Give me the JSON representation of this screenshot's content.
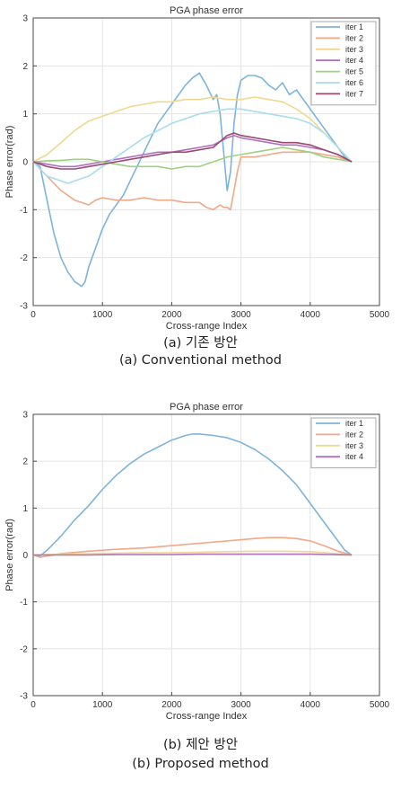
{
  "captions": {
    "a_korean": "(a) 기존 방안",
    "a_english": "(a) Conventional method",
    "b_korean": "(b) 제안 방안",
    "b_english": "(b) Proposed method"
  },
  "chart_data": [
    {
      "type": "line",
      "title": "PGA phase error",
      "xlabel": "Cross-range Index",
      "ylabel": "Phase error(rad)",
      "xlim": [
        0,
        5000
      ],
      "ylim": [
        -3,
        3
      ],
      "xticks": [
        0,
        1000,
        2000,
        3000,
        4000,
        5000
      ],
      "yticks": [
        -3,
        -2,
        -1,
        0,
        1,
        2,
        3
      ],
      "grid": true,
      "legend": "top-right",
      "series": [
        {
          "name": "iter 1",
          "color": "#7db4dc",
          "x": [
            0,
            100,
            200,
            300,
            400,
            500,
            600,
            700,
            750,
            800,
            900,
            1000,
            1100,
            1200,
            1300,
            1400,
            1500,
            1600,
            1700,
            1800,
            1900,
            2000,
            2100,
            2200,
            2300,
            2400,
            2500,
            2600,
            2650,
            2700,
            2750,
            2800,
            2850,
            2900,
            2950,
            3000,
            3100,
            3200,
            3300,
            3400,
            3500,
            3600,
            3700,
            3800,
            3900,
            4000,
            4100,
            4200,
            4300,
            4400,
            4500,
            4600
          ],
          "y": [
            0,
            -0.1,
            -0.8,
            -1.5,
            -2.0,
            -2.3,
            -2.5,
            -2.6,
            -2.5,
            -2.2,
            -1.8,
            -1.4,
            -1.1,
            -0.9,
            -0.7,
            -0.4,
            -0.1,
            0.2,
            0.5,
            0.8,
            1.0,
            1.2,
            1.4,
            1.6,
            1.75,
            1.85,
            1.6,
            1.3,
            1.4,
            1.0,
            0.2,
            -0.6,
            -0.2,
            0.8,
            1.4,
            1.7,
            1.8,
            1.8,
            1.75,
            1.6,
            1.5,
            1.65,
            1.4,
            1.5,
            1.3,
            1.1,
            0.9,
            0.7,
            0.5,
            0.3,
            0.1,
            0
          ]
        },
        {
          "name": "iter 2",
          "color": "#f0a888",
          "x": [
            0,
            200,
            400,
            600,
            800,
            900,
            1000,
            1200,
            1400,
            1600,
            1800,
            2000,
            2200,
            2400,
            2500,
            2600,
            2700,
            2750,
            2800,
            2850,
            2900,
            2950,
            3000,
            3200,
            3400,
            3600,
            3800,
            4000,
            4200,
            4400,
            4600
          ],
          "y": [
            0,
            -0.3,
            -0.6,
            -0.8,
            -0.9,
            -0.8,
            -0.75,
            -0.8,
            -0.8,
            -0.75,
            -0.8,
            -0.8,
            -0.85,
            -0.85,
            -0.95,
            -1.0,
            -0.9,
            -0.95,
            -0.95,
            -1.0,
            -0.6,
            -0.2,
            0.1,
            0.1,
            0.15,
            0.2,
            0.2,
            0.2,
            0.15,
            0.1,
            0
          ]
        },
        {
          "name": "iter 3",
          "color": "#f0d890",
          "x": [
            0,
            200,
            400,
            600,
            800,
            1000,
            1200,
            1400,
            1600,
            1800,
            2000,
            2200,
            2400,
            2600,
            2800,
            3000,
            3200,
            3400,
            3600,
            3800,
            4000,
            4200,
            4400,
            4600
          ],
          "y": [
            0,
            0.15,
            0.4,
            0.65,
            0.85,
            0.95,
            1.05,
            1.15,
            1.2,
            1.25,
            1.25,
            1.3,
            1.3,
            1.35,
            1.3,
            1.3,
            1.35,
            1.3,
            1.25,
            1.1,
            0.9,
            0.6,
            0.3,
            0
          ]
        },
        {
          "name": "iter 4",
          "color": "#b070c0",
          "x": [
            0,
            200,
            400,
            600,
            800,
            1000,
            1200,
            1400,
            1600,
            1800,
            2000,
            2200,
            2400,
            2600,
            2800,
            2900,
            3000,
            3200,
            3400,
            3600,
            3800,
            4000,
            4200,
            4400,
            4600
          ],
          "y": [
            0,
            -0.05,
            -0.1,
            -0.1,
            -0.05,
            0,
            0.05,
            0.1,
            0.15,
            0.2,
            0.2,
            0.25,
            0.3,
            0.35,
            0.5,
            0.55,
            0.5,
            0.45,
            0.4,
            0.35,
            0.35,
            0.3,
            0.25,
            0.15,
            0
          ]
        },
        {
          "name": "iter 5",
          "color": "#a0d080",
          "x": [
            0,
            200,
            400,
            600,
            800,
            1000,
            1200,
            1400,
            1600,
            1800,
            2000,
            2200,
            2400,
            2600,
            2800,
            3000,
            3200,
            3400,
            3600,
            3800,
            4000,
            4200,
            4400,
            4600
          ],
          "y": [
            0,
            0.02,
            0.03,
            0.05,
            0.05,
            0.0,
            -0.05,
            -0.1,
            -0.1,
            -0.1,
            -0.15,
            -0.1,
            -0.1,
            0.0,
            0.1,
            0.15,
            0.2,
            0.25,
            0.3,
            0.25,
            0.2,
            0.1,
            0.05,
            0
          ]
        },
        {
          "name": "iter 6",
          "color": "#a8dcee",
          "x": [
            0,
            200,
            400,
            500,
            600,
            800,
            1000,
            1200,
            1400,
            1600,
            1800,
            2000,
            2200,
            2400,
            2600,
            2800,
            3000,
            3200,
            3400,
            3600,
            3800,
            4000,
            4200,
            4400,
            4600
          ],
          "y": [
            0,
            -0.3,
            -0.4,
            -0.45,
            -0.4,
            -0.3,
            -0.1,
            0.1,
            0.3,
            0.5,
            0.65,
            0.8,
            0.9,
            1.0,
            1.05,
            1.1,
            1.1,
            1.05,
            1.0,
            0.95,
            0.9,
            0.8,
            0.6,
            0.3,
            0
          ]
        },
        {
          "name": "iter 7",
          "color": "#9a4a70",
          "x": [
            0,
            200,
            400,
            600,
            800,
            1000,
            1200,
            1400,
            1600,
            1800,
            2000,
            2200,
            2400,
            2600,
            2800,
            2900,
            3000,
            3200,
            3400,
            3600,
            3800,
            4000,
            4200,
            4400,
            4600
          ],
          "y": [
            0,
            -0.1,
            -0.15,
            -0.15,
            -0.1,
            -0.05,
            0.0,
            0.05,
            0.1,
            0.15,
            0.2,
            0.2,
            0.25,
            0.3,
            0.55,
            0.6,
            0.55,
            0.5,
            0.45,
            0.4,
            0.4,
            0.35,
            0.25,
            0.15,
            0
          ]
        }
      ]
    },
    {
      "type": "line",
      "title": "PGA phase error",
      "xlabel": "Cross-range Index",
      "ylabel": "Phase error(rad)",
      "xlim": [
        0,
        5000
      ],
      "ylim": [
        -3,
        3
      ],
      "xticks": [
        0,
        1000,
        2000,
        3000,
        4000,
        5000
      ],
      "yticks": [
        -3,
        -2,
        -1,
        0,
        1,
        2,
        3
      ],
      "grid": true,
      "legend": "top-right",
      "series": [
        {
          "name": "iter 1",
          "color": "#7db4dc",
          "x": [
            0,
            100,
            200,
            400,
            600,
            800,
            1000,
            1200,
            1400,
            1600,
            1800,
            2000,
            2200,
            2300,
            2400,
            2600,
            2800,
            3000,
            3200,
            3400,
            3600,
            3800,
            4000,
            4200,
            4400,
            4500,
            4600
          ],
          "y": [
            0,
            -0.02,
            0.1,
            0.4,
            0.75,
            1.05,
            1.4,
            1.7,
            1.95,
            2.15,
            2.3,
            2.45,
            2.55,
            2.58,
            2.58,
            2.55,
            2.5,
            2.4,
            2.25,
            2.05,
            1.8,
            1.5,
            1.1,
            0.7,
            0.3,
            0.1,
            0
          ]
        },
        {
          "name": "iter 2",
          "color": "#f0a888",
          "x": [
            0,
            100,
            400,
            800,
            1200,
            1600,
            2000,
            2400,
            2800,
            3200,
            3400,
            3600,
            3800,
            4000,
            4200,
            4400,
            4600
          ],
          "y": [
            0,
            -0.05,
            0.03,
            0.08,
            0.12,
            0.15,
            0.2,
            0.25,
            0.3,
            0.35,
            0.37,
            0.37,
            0.35,
            0.3,
            0.2,
            0.08,
            0
          ]
        },
        {
          "name": "iter 3",
          "color": "#f0d890",
          "x": [
            0,
            400,
            800,
            1200,
            1600,
            2000,
            2400,
            2800,
            3200,
            3600,
            4000,
            4300,
            4600
          ],
          "y": [
            0,
            0.02,
            0.03,
            0.04,
            0.05,
            0.05,
            0.06,
            0.07,
            0.08,
            0.08,
            0.07,
            0.04,
            0
          ]
        },
        {
          "name": "iter 4",
          "color": "#b070c0",
          "x": [
            0,
            400,
            800,
            1200,
            1600,
            2000,
            2400,
            2800,
            3200,
            3600,
            4000,
            4300,
            4600
          ],
          "y": [
            0,
            0.0,
            0.0,
            0.01,
            0.01,
            0.01,
            0.02,
            0.02,
            0.02,
            0.02,
            0.02,
            0.01,
            0
          ]
        }
      ]
    }
  ]
}
